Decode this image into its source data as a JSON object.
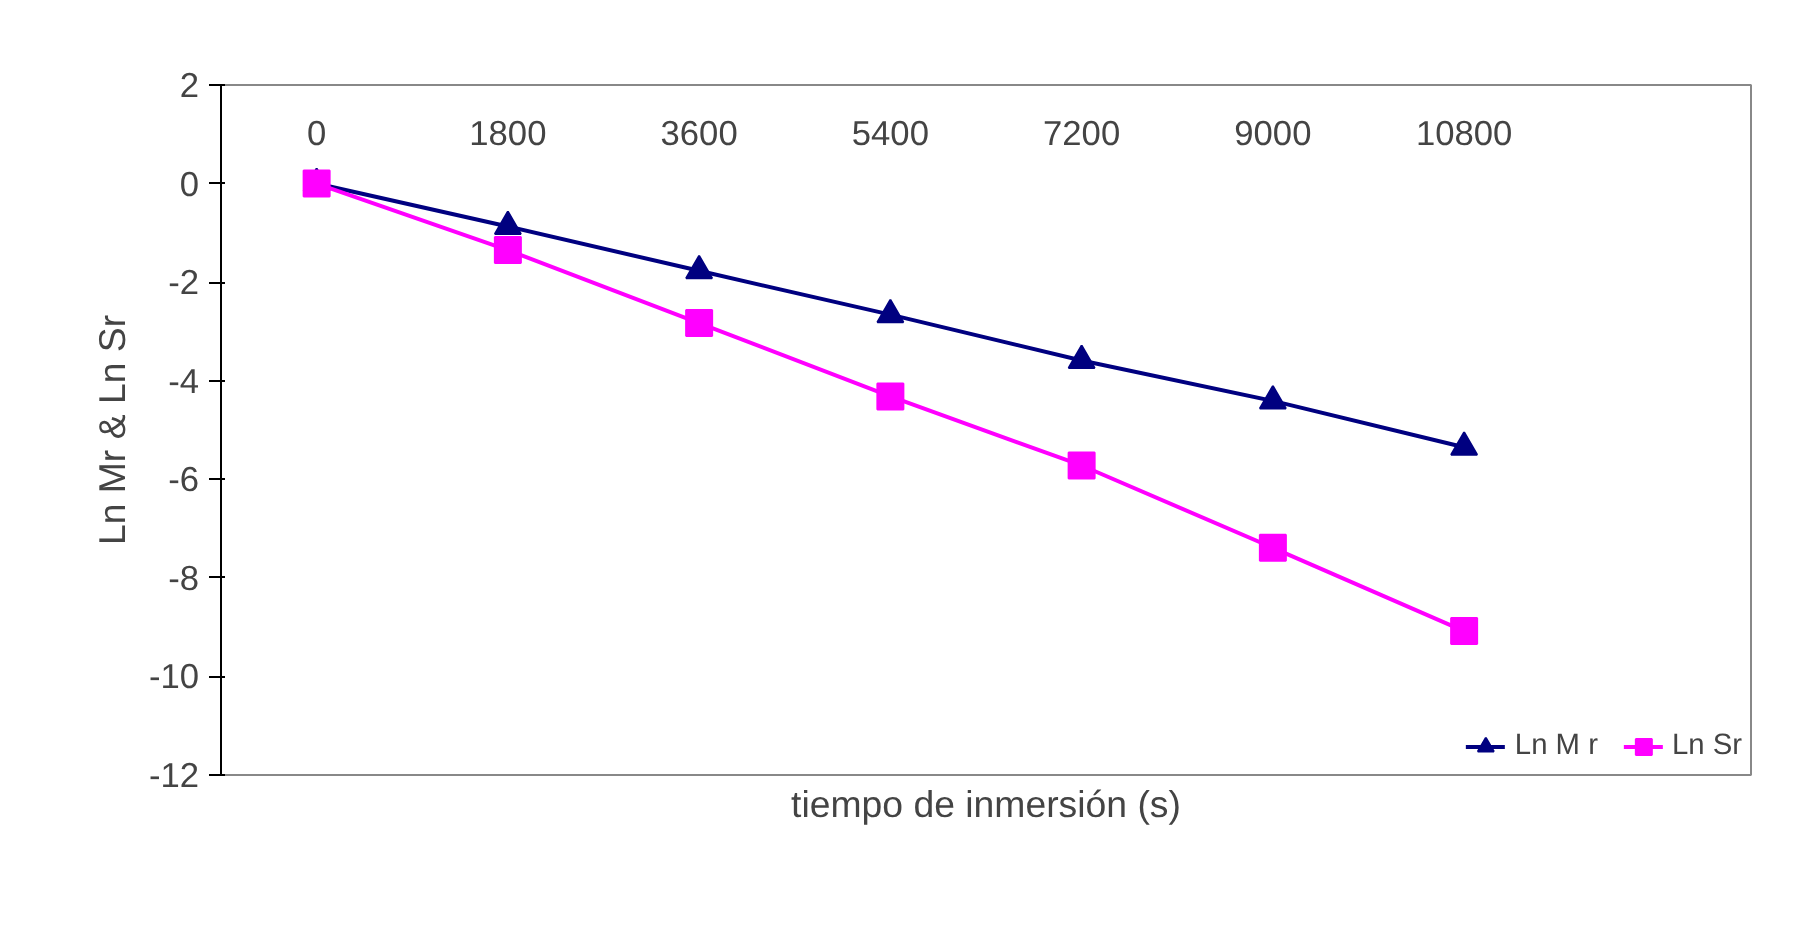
{
  "chart_data": {
    "type": "line",
    "xlabel": "tiempo de inmersión (s)",
    "ylabel": "Ln Mr & Ln Sr",
    "categories": [
      "0",
      "1800",
      "3600",
      "5400",
      "7200",
      "9000",
      "10800",
      null
    ],
    "series": [
      {
        "name": "Ln M r",
        "color": "#000080",
        "marker": "triangle",
        "values": [
          0,
          -0.87,
          -1.77,
          -2.66,
          -3.59,
          -4.41,
          -5.35,
          null
        ]
      },
      {
        "name": "Ln Sr",
        "color": "#ff00ff",
        "marker": "square",
        "values": [
          0,
          -1.35,
          -2.83,
          -4.32,
          -5.72,
          -7.39,
          -9.08,
          null
        ]
      }
    ],
    "ylim": [
      -12,
      2
    ],
    "yticks": [
      -12,
      -10,
      -8,
      -6,
      -4,
      -2,
      0,
      2
    ],
    "grid": false,
    "legend": "bottom right",
    "line_style": "solid"
  }
}
